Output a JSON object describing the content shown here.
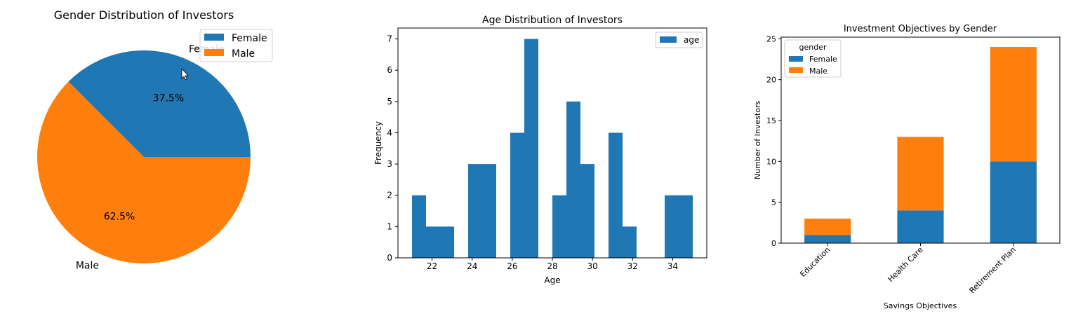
{
  "chart_data": [
    {
      "type": "pie",
      "title": "Gender Distribution of Investors",
      "labels": [
        "Female",
        "Male"
      ],
      "values": [
        37.5,
        62.5
      ],
      "autopct": [
        "37.5%",
        "62.5%"
      ],
      "colors": [
        "#1f77b4",
        "#ff7f0e"
      ],
      "legend": {
        "entries": [
          "Female",
          "Male"
        ],
        "loc": "upper-right"
      }
    },
    {
      "type": "bar",
      "title": "Age Distribution of Investors",
      "xlabel": "Age",
      "ylabel": "Frequency",
      "xlim": [
        20.3,
        35.7
      ],
      "ylim": [
        0,
        7.35
      ],
      "xticks": [
        22,
        24,
        26,
        28,
        30,
        32,
        34
      ],
      "yticks": [
        0,
        1,
        2,
        3,
        4,
        5,
        6,
        7
      ],
      "bins": [
        {
          "x0": 21.0,
          "x1": 21.7,
          "count": 2
        },
        {
          "x0": 21.7,
          "x1": 22.4,
          "count": 1
        },
        {
          "x0": 22.4,
          "x1": 23.1,
          "count": 1
        },
        {
          "x0": 23.1,
          "x1": 23.8,
          "count": 0
        },
        {
          "x0": 23.8,
          "x1": 24.5,
          "count": 3
        },
        {
          "x0": 24.5,
          "x1": 25.2,
          "count": 3
        },
        {
          "x0": 25.2,
          "x1": 25.9,
          "count": 0
        },
        {
          "x0": 25.9,
          "x1": 26.6,
          "count": 4
        },
        {
          "x0": 26.6,
          "x1": 27.3,
          "count": 7
        },
        {
          "x0": 27.3,
          "x1": 28.0,
          "count": 0
        },
        {
          "x0": 28.0,
          "x1": 28.7,
          "count": 2
        },
        {
          "x0": 28.7,
          "x1": 29.4,
          "count": 5
        },
        {
          "x0": 29.4,
          "x1": 30.1,
          "count": 3
        },
        {
          "x0": 30.1,
          "x1": 30.8,
          "count": 0
        },
        {
          "x0": 30.8,
          "x1": 31.5,
          "count": 4
        },
        {
          "x0": 31.5,
          "x1": 32.2,
          "count": 1
        },
        {
          "x0": 32.2,
          "x1": 32.9,
          "count": 0
        },
        {
          "x0": 32.9,
          "x1": 33.6,
          "count": 0
        },
        {
          "x0": 33.6,
          "x1": 34.3,
          "count": 2
        },
        {
          "x0": 34.3,
          "x1": 35.0,
          "count": 2
        }
      ],
      "color": "#1f77b4",
      "legend": {
        "entries": [
          "age"
        ],
        "loc": "upper-right"
      }
    },
    {
      "type": "bar",
      "stacked": true,
      "title": "Investment Objectives by Gender",
      "xlabel": "Savings Objectives",
      "ylabel": "Number of Investors",
      "categories": [
        "Education",
        "Health Care",
        "Retirement Plan"
      ],
      "series": [
        {
          "name": "Female",
          "values": [
            1,
            4,
            10
          ],
          "color": "#1f77b4"
        },
        {
          "name": "Male",
          "values": [
            2,
            9,
            14
          ],
          "color": "#ff7f0e"
        }
      ],
      "ylim": [
        0,
        25.2
      ],
      "yticks": [
        0,
        5,
        10,
        15,
        20,
        25
      ],
      "legend": {
        "title": "gender",
        "entries": [
          "Female",
          "Male"
        ],
        "loc": "upper-left"
      }
    }
  ]
}
